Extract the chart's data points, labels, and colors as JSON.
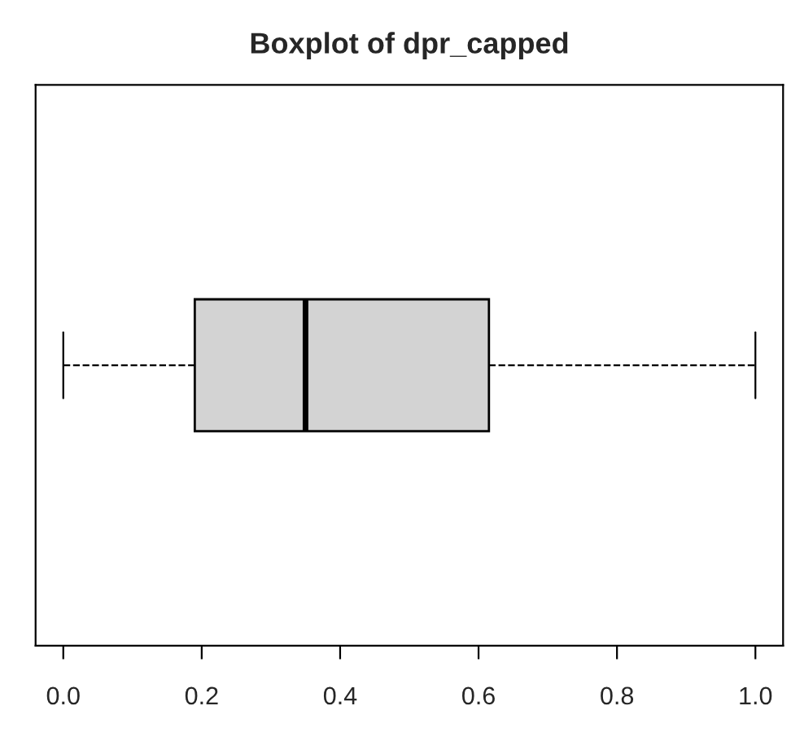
{
  "chart_data": {
    "type": "box",
    "title": "Boxplot of dpr_capped",
    "orientation": "horizontal",
    "categories": [
      null
    ],
    "boxes": [
      {
        "low": 0.0,
        "q1": 0.19,
        "median": 0.35,
        "q3": 0.615,
        "high": 1.0
      }
    ],
    "color": "#d3d3d3",
    "line_style": "dashed",
    "xlim": [
      -0.04,
      1.04
    ],
    "xticks": [
      {
        "value": 0,
        "label": "0.0"
      },
      {
        "value": 0.2,
        "label": "0.2"
      },
      {
        "value": 0.4,
        "label": "0.4"
      },
      {
        "value": 0.6,
        "label": "0.6"
      },
      {
        "value": 0.8,
        "label": "0.8"
      },
      {
        "value": 1,
        "label": "1.0"
      }
    ],
    "tick_labels": "x",
    "grid": false
  }
}
